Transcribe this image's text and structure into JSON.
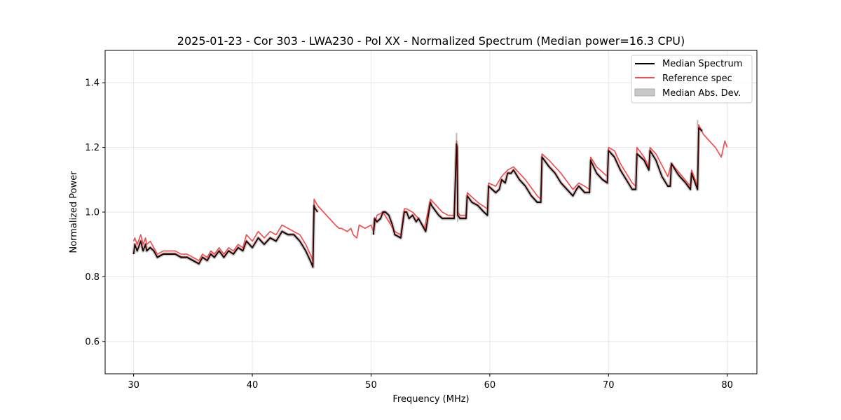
{
  "chart_data": {
    "type": "line",
    "title": "2025-01-23 - Cor 303 - LWA230 - Pol XX - Normalized Spectrum (Median power=16.3 CPU)",
    "xlabel": "Frequency (MHz)",
    "ylabel": "Normalized Power",
    "xlim": [
      27.6,
      82.5
    ],
    "ylim": [
      0.5,
      1.5
    ],
    "xticks": [
      30,
      40,
      50,
      60,
      70,
      80
    ],
    "xtick_labels": [
      "30",
      "40",
      "50",
      "60",
      "70",
      "80"
    ],
    "yticks": [
      0.6,
      0.8,
      1.0,
      1.2,
      1.4
    ],
    "ytick_labels": [
      "0.6",
      "0.8",
      "1.0",
      "1.2",
      "1.4"
    ],
    "grid": true,
    "legend_position": "top-right",
    "colors": {
      "median": "#000000",
      "reference": "#f05050",
      "mad": "#bbbbbb"
    },
    "series": [
      {
        "name": "Median Spectrum",
        "color": "#000000",
        "x": [
          30.0,
          30.1,
          30.3,
          30.5,
          30.6,
          30.8,
          31.0,
          31.1,
          31.4,
          31.7,
          32.0,
          32.5,
          33.0,
          33.5,
          34.0,
          34.5,
          35.0,
          35.5,
          35.8,
          36.2,
          36.5,
          36.8,
          37.2,
          37.6,
          38.0,
          38.4,
          38.8,
          39.2,
          39.5,
          40.0,
          40.5,
          41.0,
          41.5,
          42.0,
          42.5,
          43.0,
          43.5,
          44.0,
          44.5,
          45.0,
          45.1,
          45.2,
          45.3,
          45.5,
          null,
          50.2,
          50.3,
          50.5,
          50.8,
          51.0,
          51.2,
          51.5,
          51.8,
          52.0,
          52.5,
          52.8,
          53.0,
          53.2,
          53.5,
          53.8,
          54.0,
          54.3,
          54.6,
          55.0,
          55.1,
          55.3,
          55.7,
          56.0,
          56.5,
          57.0,
          57.2,
          57.25,
          57.3,
          57.5,
          57.8,
          58.0,
          58.1,
          58.5,
          59.0,
          59.5,
          59.8,
          59.9,
          60.5,
          60.8,
          61.0,
          61.3,
          61.5,
          61.8,
          62.0,
          62.5,
          63.0,
          63.5,
          64.0,
          64.3,
          64.4,
          65.0,
          65.5,
          66.0,
          66.5,
          67.0,
          67.3,
          67.5,
          68.0,
          68.4,
          68.5,
          69.0,
          69.5,
          69.9,
          70.0,
          70.5,
          71.0,
          71.5,
          72.0,
          72.3,
          72.4,
          73.0,
          73.4,
          73.5,
          74.0,
          74.5,
          75.0,
          75.2,
          75.3,
          75.8,
          76.0,
          76.5,
          76.9,
          77.0,
          77.5,
          77.6,
          77.9
        ],
        "y": [
          0.87,
          0.9,
          0.88,
          0.9,
          0.91,
          0.88,
          0.9,
          0.88,
          0.89,
          0.88,
          0.86,
          0.87,
          0.87,
          0.87,
          0.86,
          0.86,
          0.85,
          0.84,
          0.86,
          0.85,
          0.87,
          0.86,
          0.88,
          0.86,
          0.88,
          0.87,
          0.89,
          0.88,
          0.91,
          0.89,
          0.92,
          0.9,
          0.92,
          0.91,
          0.94,
          0.93,
          0.93,
          0.91,
          0.88,
          0.84,
          0.83,
          1.02,
          1.01,
          1.0,
          null,
          0.93,
          0.98,
          0.97,
          0.98,
          1.0,
          1.0,
          0.99,
          0.96,
          0.93,
          0.92,
          1.0,
          1.0,
          0.98,
          0.99,
          0.97,
          0.98,
          0.96,
          0.94,
          1.03,
          1.02,
          1.01,
          0.99,
          0.98,
          0.98,
          0.98,
          1.21,
          1.2,
          0.99,
          0.98,
          0.98,
          0.98,
          1.05,
          1.03,
          1.02,
          1.0,
          0.99,
          1.08,
          1.06,
          1.07,
          1.1,
          1.09,
          1.12,
          1.12,
          1.13,
          1.1,
          1.08,
          1.05,
          1.03,
          1.03,
          1.17,
          1.14,
          1.12,
          1.09,
          1.07,
          1.05,
          1.07,
          1.08,
          1.06,
          1.06,
          1.16,
          1.12,
          1.1,
          1.09,
          1.19,
          1.17,
          1.13,
          1.1,
          1.07,
          1.07,
          1.18,
          1.16,
          1.13,
          1.19,
          1.16,
          1.11,
          1.08,
          1.08,
          1.15,
          1.12,
          1.11,
          1.09,
          1.07,
          1.12,
          1.07,
          1.26,
          1.25
        ]
      },
      {
        "name": "Reference spec",
        "color": "#f05050",
        "x": [
          30.0,
          30.1,
          30.3,
          30.5,
          30.6,
          30.8,
          31.0,
          31.1,
          31.4,
          31.7,
          32.0,
          32.5,
          33.0,
          33.5,
          34.0,
          34.5,
          35.0,
          35.5,
          35.8,
          36.2,
          36.5,
          36.8,
          37.2,
          37.6,
          38.0,
          38.4,
          38.8,
          39.2,
          39.5,
          40.0,
          40.5,
          41.0,
          41.5,
          42.0,
          42.5,
          43.0,
          43.5,
          44.0,
          44.5,
          45.0,
          45.1,
          45.2,
          45.5,
          46.0,
          46.5,
          47.0,
          47.3,
          47.5,
          48.0,
          48.3,
          48.5,
          48.8,
          49.0,
          49.5,
          50.0,
          50.2,
          50.5,
          51.0,
          51.5,
          52.0,
          52.5,
          52.8,
          53.0,
          53.5,
          54.0,
          54.5,
          55.0,
          55.5,
          56.0,
          56.5,
          57.0,
          57.2,
          57.3,
          57.5,
          57.8,
          58.0,
          58.1,
          59.0,
          59.8,
          59.9,
          60.5,
          61.0,
          61.5,
          62.0,
          62.5,
          63.0,
          64.0,
          64.3,
          64.4,
          65.0,
          66.0,
          67.0,
          67.5,
          68.0,
          68.4,
          68.5,
          69.0,
          69.9,
          70.0,
          70.5,
          71.0,
          71.5,
          72.0,
          72.3,
          72.4,
          73.0,
          73.4,
          73.5,
          74.0,
          75.0,
          75.3,
          76.0,
          76.9,
          77.0,
          77.5,
          77.6,
          78.0,
          79.0,
          79.5,
          79.8,
          80.0
        ],
        "y": [
          0.91,
          0.92,
          0.9,
          0.92,
          0.93,
          0.9,
          0.92,
          0.9,
          0.91,
          0.89,
          0.87,
          0.88,
          0.88,
          0.88,
          0.87,
          0.87,
          0.86,
          0.85,
          0.87,
          0.86,
          0.88,
          0.87,
          0.89,
          0.87,
          0.89,
          0.88,
          0.9,
          0.89,
          0.93,
          0.91,
          0.94,
          0.92,
          0.94,
          0.93,
          0.96,
          0.95,
          0.94,
          0.93,
          0.9,
          0.86,
          0.85,
          1.04,
          1.02,
          1.0,
          0.98,
          0.96,
          0.95,
          0.95,
          0.94,
          0.95,
          0.93,
          0.92,
          0.96,
          0.95,
          0.96,
          0.94,
          0.99,
          1.0,
          0.97,
          0.94,
          0.93,
          1.01,
          1.01,
          1.0,
          0.98,
          0.95,
          1.04,
          1.02,
          1.0,
          0.99,
          0.99,
          1.22,
          1.0,
          0.99,
          0.99,
          0.99,
          1.06,
          1.03,
          1.01,
          1.09,
          1.08,
          1.11,
          1.13,
          1.14,
          1.12,
          1.1,
          1.05,
          1.04,
          1.18,
          1.16,
          1.12,
          1.07,
          1.09,
          1.08,
          1.07,
          1.17,
          1.14,
          1.11,
          1.2,
          1.19,
          1.15,
          1.12,
          1.09,
          1.08,
          1.2,
          1.17,
          1.14,
          1.2,
          1.18,
          1.11,
          1.15,
          1.12,
          1.08,
          1.13,
          1.08,
          1.27,
          1.24,
          1.2,
          1.17,
          1.22,
          1.2
        ]
      }
    ],
    "mad_band": {
      "name": "Median Abs. Dev.",
      "x": [
        57.2,
        57.25,
        57.3,
        77.5,
        77.6
      ],
      "spikes_y": [
        1.245,
        1.22,
        1.0,
        1.285,
        1.27
      ]
    },
    "legend": [
      {
        "label": "Median Spectrum",
        "kind": "line",
        "color": "#000000"
      },
      {
        "label": "Reference spec",
        "kind": "line",
        "color": "#f05050"
      },
      {
        "label": "Median Abs. Dev.",
        "kind": "patch",
        "color": "#bbbbbb"
      }
    ]
  }
}
